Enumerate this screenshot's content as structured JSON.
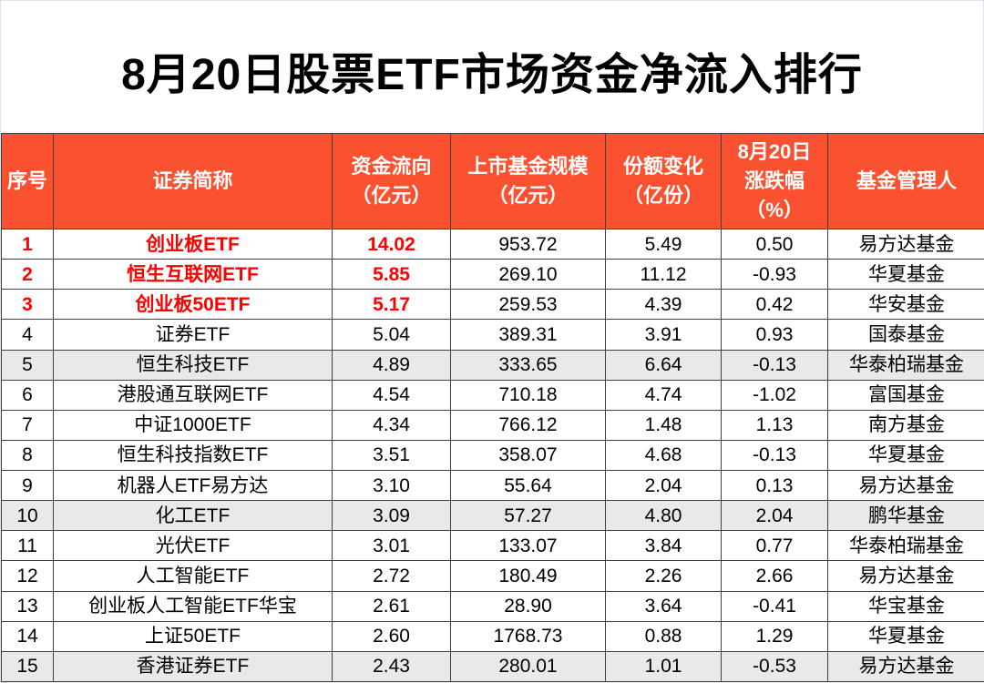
{
  "page": {
    "title": "8月20日股票ETF市场资金净流入排行"
  },
  "table": {
    "headers": [
      "序号",
      "证券简称",
      "资金流向\n（亿元）",
      "上市基金规模\n（亿元）",
      "份额变化\n（亿份）",
      "8月20日\n涨跌幅\n（%）",
      "基金管理人"
    ],
    "rows": [
      [
        "1",
        "创业板ETF",
        "14.02",
        "953.72",
        "5.49",
        "0.50",
        "易方达基金"
      ],
      [
        "2",
        "恒生互联网ETF",
        "5.85",
        "269.10",
        "11.12",
        "-0.93",
        "华夏基金"
      ],
      [
        "3",
        "创业板50ETF",
        "5.17",
        "259.53",
        "4.39",
        "0.42",
        "华安基金"
      ],
      [
        "4",
        "证券ETF",
        "5.04",
        "389.31",
        "3.91",
        "0.93",
        "国泰基金"
      ],
      [
        "5",
        "恒生科技ETF",
        "4.89",
        "333.65",
        "6.64",
        "-0.13",
        "华泰柏瑞基金"
      ],
      [
        "6",
        "港股通互联网ETF",
        "4.54",
        "710.18",
        "4.74",
        "-1.02",
        "富国基金"
      ],
      [
        "7",
        "中证1000ETF",
        "4.34",
        "766.12",
        "1.48",
        "1.13",
        "南方基金"
      ],
      [
        "8",
        "恒生科技指数ETF",
        "3.51",
        "358.07",
        "4.68",
        "-0.13",
        "华夏基金"
      ],
      [
        "9",
        "机器人ETF易方达",
        "3.10",
        "55.64",
        "2.04",
        "0.13",
        "易方达基金"
      ],
      [
        "10",
        "化工ETF",
        "3.09",
        "57.27",
        "4.80",
        "2.04",
        "鹏华基金"
      ],
      [
        "11",
        "光伏ETF",
        "3.01",
        "133.07",
        "3.84",
        "0.77",
        "华泰柏瑞基金"
      ],
      [
        "12",
        "人工智能ETF",
        "2.72",
        "180.49",
        "2.26",
        "2.66",
        "易方达基金"
      ],
      [
        "13",
        "创业板人工智能ETF华宝",
        "2.61",
        "28.90",
        "3.64",
        "-0.41",
        "华宝基金"
      ],
      [
        "14",
        "上证50ETF",
        "2.60",
        "1768.73",
        "0.88",
        "1.29",
        "华夏基金"
      ],
      [
        "15",
        "香港证券ETF",
        "2.43",
        "280.01",
        "1.01",
        "-0.53",
        "易方达基金"
      ]
    ]
  },
  "colors": {
    "header_bg": "#FA5230",
    "header_text": "#FFFFFF",
    "top3_text": "#FE0000",
    "shaded_row_bg": "#E9E9E9",
    "grid_border": "#404040",
    "title_text": "#000000"
  },
  "chart_data": {
    "type": "table",
    "title": "8月20日股票ETF市场资金净流入排行",
    "columns": [
      "序号",
      "证券简称",
      "资金流向（亿元）",
      "上市基金规模（亿元）",
      "份额变化（亿份）",
      "8月20日涨跌幅（%）",
      "基金管理人"
    ],
    "rows": [
      [
        1,
        "创业板ETF",
        14.02,
        953.72,
        5.49,
        0.5,
        "易方达基金"
      ],
      [
        2,
        "恒生互联网ETF",
        5.85,
        269.1,
        11.12,
        -0.93,
        "华夏基金"
      ],
      [
        3,
        "创业板50ETF",
        5.17,
        259.53,
        4.39,
        0.42,
        "华安基金"
      ],
      [
        4,
        "证券ETF",
        5.04,
        389.31,
        3.91,
        0.93,
        "国泰基金"
      ],
      [
        5,
        "恒生科技ETF",
        4.89,
        333.65,
        6.64,
        -0.13,
        "华泰柏瑞基金"
      ],
      [
        6,
        "港股通互联网ETF",
        4.54,
        710.18,
        4.74,
        -1.02,
        "富国基金"
      ],
      [
        7,
        "中证1000ETF",
        4.34,
        766.12,
        1.48,
        1.13,
        "南方基金"
      ],
      [
        8,
        "恒生科技指数ETF",
        3.51,
        358.07,
        4.68,
        -0.13,
        "华夏基金"
      ],
      [
        9,
        "机器人ETF易方达",
        3.1,
        55.64,
        2.04,
        0.13,
        "易方达基金"
      ],
      [
        10,
        "化工ETF",
        3.09,
        57.27,
        4.8,
        2.04,
        "鹏华基金"
      ],
      [
        11,
        "光伏ETF",
        3.01,
        133.07,
        3.84,
        0.77,
        "华泰柏瑞基金"
      ],
      [
        12,
        "人工智能ETF",
        2.72,
        180.49,
        2.26,
        2.66,
        "易方达基金"
      ],
      [
        13,
        "创业板人工智能ETF华宝",
        2.61,
        28.9,
        3.64,
        -0.41,
        "华宝基金"
      ],
      [
        14,
        "上证50ETF",
        2.6,
        1768.73,
        0.88,
        1.29,
        "华夏基金"
      ],
      [
        15,
        "香港证券ETF",
        2.43,
        280.01,
        1.01,
        -0.53,
        "易方达基金"
      ]
    ],
    "notes": "rows 1-3 rendered in red bold for 序号/证券简称/资金流向; every 5th row shaded gray"
  }
}
